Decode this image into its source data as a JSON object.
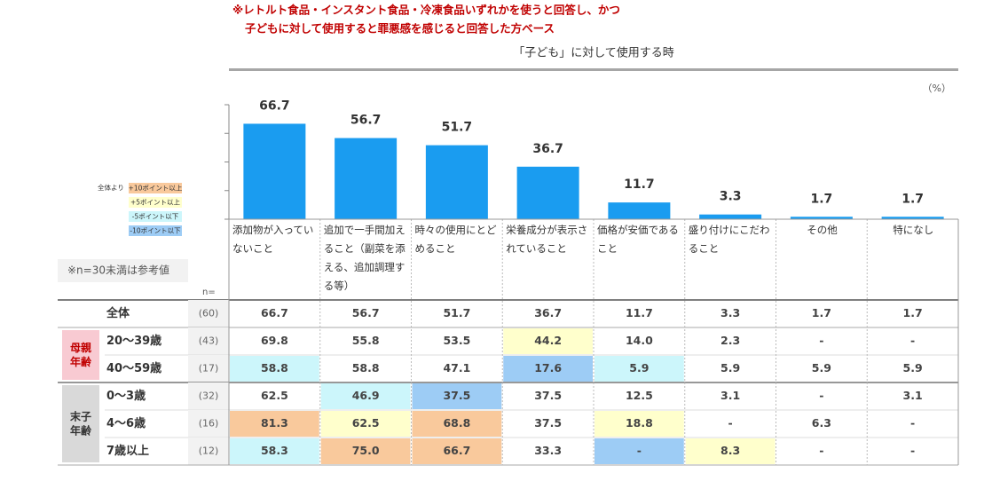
{
  "notes": [
    "※レトルト食品・インスタント食品・冷凍食品いずれかを使うと回答し、かつ",
    "子どもに対して使用すると罪悪感を感じると回答した方ベース"
  ],
  "chart_data": {
    "type": "bar",
    "title": "「子ども」に対して使用する時",
    "unit": "（%）",
    "categories": [
      "添加物が入っていないこと",
      "追加で一手間加えること（副菜を添える、追加調理する等）",
      "時々の使用にとどめること",
      "栄養成分が表示されていること",
      "価格が安価であること",
      "盛り付けにこだわること",
      "その他",
      "特になし"
    ],
    "values": [
      66.7,
      56.7,
      51.7,
      36.7,
      11.7,
      3.3,
      1.7,
      1.7
    ],
    "color": "#1a9cf0",
    "ylim": [
      0,
      80
    ],
    "yticks": [
      0,
      20,
      40,
      60,
      80
    ]
  },
  "legend": {
    "title": "全体より",
    "items": [
      {
        "label": "+10ポイント以上",
        "color": "#f9c99c"
      },
      {
        "label": "+5ポイント以上",
        "color": "#ffffcc"
      },
      {
        "label": "-5ポイント以下",
        "color": "#ccf6fb"
      },
      {
        "label": "-10ポイント以下",
        "color": "#9dccf5"
      }
    ]
  },
  "table": {
    "note": "※n=30未満は参考値",
    "n_header": "n=",
    "total": {
      "label": "全体",
      "n": "(60)",
      "cells": [
        "66.7",
        "56.7",
        "51.7",
        "36.7",
        "11.7",
        "3.3",
        "1.7",
        "1.7"
      ],
      "highlight": [
        null,
        null,
        null,
        null,
        null,
        null,
        null,
        null
      ]
    },
    "groups": [
      {
        "label": "母親年齢",
        "color": "#f8cad2",
        "text_color": "#c00000",
        "rows": [
          {
            "label": "20〜39歳",
            "n": "(43)",
            "cells": [
              "69.8",
              "55.8",
              "53.5",
              "44.2",
              "14.0",
              "2.3",
              "-",
              "-"
            ],
            "highlight": [
              null,
              null,
              null,
              1,
              null,
              null,
              null,
              null
            ]
          },
          {
            "label": "40〜59歳",
            "n": "(17)",
            "cells": [
              "58.8",
              "58.8",
              "47.1",
              "17.6",
              "5.9",
              "5.9",
              "5.9",
              "5.9"
            ],
            "highlight": [
              2,
              null,
              null,
              3,
              2,
              null,
              null,
              null
            ]
          }
        ]
      },
      {
        "label": "末子年齢",
        "color": "#d9d9d9",
        "text_color": "#333333",
        "rows": [
          {
            "label": "0〜3歳",
            "n": "(32)",
            "cells": [
              "62.5",
              "46.9",
              "37.5",
              "37.5",
              "12.5",
              "3.1",
              "-",
              "3.1"
            ],
            "highlight": [
              null,
              2,
              3,
              null,
              null,
              null,
              null,
              null
            ]
          },
          {
            "label": "4〜6歳",
            "n": "(16)",
            "cells": [
              "81.3",
              "62.5",
              "68.8",
              "37.5",
              "18.8",
              "-",
              "6.3",
              "-"
            ],
            "highlight": [
              0,
              1,
              0,
              null,
              1,
              null,
              null,
              null
            ]
          },
          {
            "label": "7歳以上",
            "n": "(12)",
            "cells": [
              "58.3",
              "75.0",
              "66.7",
              "33.3",
              "-",
              "8.3",
              "-",
              "-"
            ],
            "highlight": [
              2,
              0,
              0,
              null,
              3,
              1,
              null,
              null
            ]
          }
        ]
      }
    ]
  }
}
